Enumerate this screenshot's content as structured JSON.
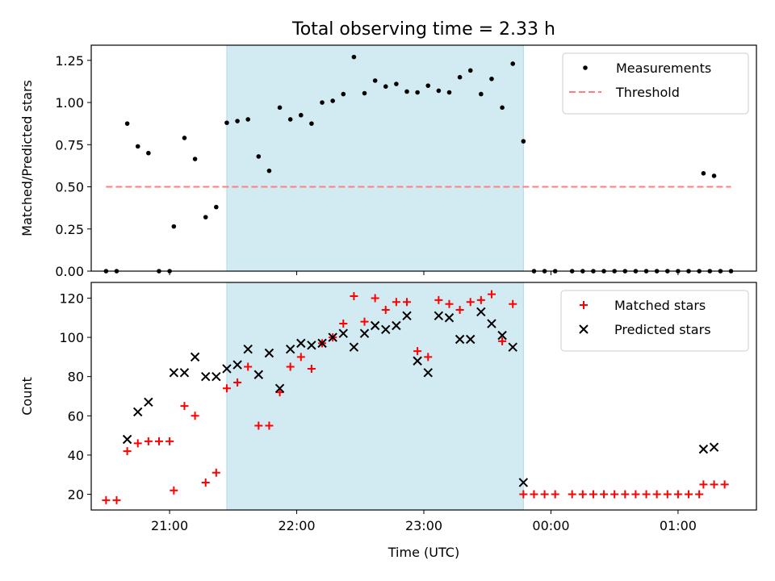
{
  "figure": {
    "title": "Total observing time = 2.33 h"
  },
  "colors": {
    "shade": "#add8e6",
    "threshold": "#ff7f7f",
    "matched": "#ff0000",
    "predicted": "#000000",
    "measurement": "#000000"
  },
  "chart_data": [
    {
      "type": "scatter",
      "title": "Total observing time = 2.33 h",
      "xlabel": "",
      "ylabel": "Matched/Predicted stars",
      "xlim": [
        "20:23",
        "01:37"
      ],
      "ylim": [
        0,
        1.34
      ],
      "xticks": [
        "21:00",
        "22:00",
        "23:00",
        "00:00",
        "01:00"
      ],
      "xtick_labels_visible": false,
      "yticks": [
        0.0,
        0.25,
        0.5,
        0.75,
        1.0,
        1.25
      ],
      "ytick_labels": [
        "0.00",
        "0.25",
        "0.50",
        "0.75",
        "1.00",
        "1.25"
      ],
      "shaded_span": [
        "21:27",
        "23:47"
      ],
      "legend_position": "upper right",
      "legend": [
        "Measurements",
        "Threshold"
      ],
      "threshold": {
        "name": "Threshold",
        "style": "dashed",
        "y": 0.5,
        "x": [
          "20:30",
          "01:25"
        ]
      },
      "series": [
        {
          "name": "Measurements",
          "marker": "dot",
          "points": [
            [
              "20:30",
              0.0
            ],
            [
              "20:35",
              0.0
            ],
            [
              "20:40",
              0.875
            ],
            [
              "20:45",
              0.74
            ],
            [
              "20:50",
              0.7
            ],
            [
              "20:55",
              0.0
            ],
            [
              "21:00",
              0.0
            ],
            [
              "21:02",
              0.265
            ],
            [
              "21:07",
              0.79
            ],
            [
              "21:12",
              0.665
            ],
            [
              "21:17",
              0.32
            ],
            [
              "21:22",
              0.38
            ],
            [
              "21:27",
              0.88
            ],
            [
              "21:32",
              0.89
            ],
            [
              "21:37",
              0.9
            ],
            [
              "21:42",
              0.68
            ],
            [
              "21:47",
              0.595
            ],
            [
              "21:52",
              0.97
            ],
            [
              "21:57",
              0.9
            ],
            [
              "22:02",
              0.925
            ],
            [
              "22:07",
              0.875
            ],
            [
              "22:12",
              1.0
            ],
            [
              "22:17",
              1.01
            ],
            [
              "22:22",
              1.05
            ],
            [
              "22:27",
              1.27
            ],
            [
              "22:32",
              1.055
            ],
            [
              "22:37",
              1.13
            ],
            [
              "22:42",
              1.095
            ],
            [
              "22:47",
              1.11
            ],
            [
              "22:52",
              1.065
            ],
            [
              "22:57",
              1.06
            ],
            [
              "23:02",
              1.1
            ],
            [
              "23:07",
              1.07
            ],
            [
              "23:12",
              1.06
            ],
            [
              "23:17",
              1.15
            ],
            [
              "23:22",
              1.19
            ],
            [
              "23:27",
              1.05
            ],
            [
              "23:32",
              1.14
            ],
            [
              "23:37",
              0.97
            ],
            [
              "23:42",
              1.23
            ],
            [
              "23:47",
              0.77
            ],
            [
              "23:52",
              0.0
            ],
            [
              "23:57",
              0.0
            ],
            [
              "00:02",
              0.0
            ],
            [
              "00:10",
              0.0
            ],
            [
              "00:15",
              0.0
            ],
            [
              "00:20",
              0.0
            ],
            [
              "00:25",
              0.0
            ],
            [
              "00:30",
              0.0
            ],
            [
              "00:35",
              0.0
            ],
            [
              "00:40",
              0.0
            ],
            [
              "00:45",
              0.0
            ],
            [
              "00:50",
              0.0
            ],
            [
              "00:55",
              0.0
            ],
            [
              "01:00",
              0.0
            ],
            [
              "01:05",
              0.0
            ],
            [
              "01:10",
              0.0
            ],
            [
              "01:15",
              0.0
            ],
            [
              "01:20",
              0.0
            ],
            [
              "01:25",
              0.0
            ],
            [
              "01:12",
              0.58
            ],
            [
              "01:17",
              0.565
            ]
          ]
        }
      ]
    },
    {
      "type": "scatter",
      "title": "",
      "xlabel": "Time (UTC)",
      "ylabel": "Count",
      "xlim": [
        "20:23",
        "01:37"
      ],
      "ylim": [
        12,
        128
      ],
      "xticks": [
        "21:00",
        "22:00",
        "23:00",
        "00:00",
        "01:00"
      ],
      "xtick_labels": [
        "21:00",
        "22:00",
        "23:00",
        "00:00",
        "01:00"
      ],
      "yticks": [
        20,
        40,
        60,
        80,
        100,
        120
      ],
      "ytick_labels": [
        "20",
        "40",
        "60",
        "80",
        "100",
        "120"
      ],
      "shaded_span": [
        "21:27",
        "23:47"
      ],
      "legend_position": "upper right",
      "legend": [
        "Matched stars",
        "Predicted stars"
      ],
      "series": [
        {
          "name": "Matched stars",
          "marker": "plus",
          "points": [
            [
              "20:30",
              17
            ],
            [
              "20:35",
              17
            ],
            [
              "20:40",
              42
            ],
            [
              "20:45",
              46
            ],
            [
              "20:50",
              47
            ],
            [
              "20:55",
              47
            ],
            [
              "21:00",
              47
            ],
            [
              "21:02",
              22
            ],
            [
              "21:07",
              65
            ],
            [
              "21:12",
              60
            ],
            [
              "21:17",
              26
            ],
            [
              "21:22",
              31
            ],
            [
              "21:27",
              74
            ],
            [
              "21:32",
              77
            ],
            [
              "21:37",
              85
            ],
            [
              "21:42",
              55
            ],
            [
              "21:47",
              55
            ],
            [
              "21:52",
              72
            ],
            [
              "21:57",
              85
            ],
            [
              "22:02",
              90
            ],
            [
              "22:07",
              84
            ],
            [
              "22:12",
              97
            ],
            [
              "22:17",
              100
            ],
            [
              "22:22",
              107
            ],
            [
              "22:27",
              121
            ],
            [
              "22:32",
              108
            ],
            [
              "22:37",
              120
            ],
            [
              "22:42",
              114
            ],
            [
              "22:47",
              118
            ],
            [
              "22:52",
              118
            ],
            [
              "22:57",
              93
            ],
            [
              "23:02",
              90
            ],
            [
              "23:07",
              119
            ],
            [
              "23:12",
              117
            ],
            [
              "23:17",
              114
            ],
            [
              "23:22",
              118
            ],
            [
              "23:27",
              119
            ],
            [
              "23:32",
              122
            ],
            [
              "23:37",
              98
            ],
            [
              "23:42",
              117
            ],
            [
              "23:47",
              20
            ],
            [
              "23:52",
              20
            ],
            [
              "23:57",
              20
            ],
            [
              "00:02",
              20
            ],
            [
              "00:10",
              20
            ],
            [
              "00:15",
              20
            ],
            [
              "00:20",
              20
            ],
            [
              "00:25",
              20
            ],
            [
              "00:30",
              20
            ],
            [
              "00:35",
              20
            ],
            [
              "00:40",
              20
            ],
            [
              "00:45",
              20
            ],
            [
              "00:50",
              20
            ],
            [
              "00:55",
              20
            ],
            [
              "01:00",
              20
            ],
            [
              "01:05",
              20
            ],
            [
              "01:10",
              20
            ],
            [
              "01:12",
              25
            ],
            [
              "01:17",
              25
            ],
            [
              "01:22",
              25
            ]
          ]
        },
        {
          "name": "Predicted stars",
          "marker": "x",
          "points": [
            [
              "20:40",
              48
            ],
            [
              "20:45",
              62
            ],
            [
              "20:50",
              67
            ],
            [
              "21:02",
              82
            ],
            [
              "21:07",
              82
            ],
            [
              "21:12",
              90
            ],
            [
              "21:17",
              80
            ],
            [
              "21:22",
              80
            ],
            [
              "21:27",
              84
            ],
            [
              "21:32",
              86
            ],
            [
              "21:37",
              94
            ],
            [
              "21:42",
              81
            ],
            [
              "21:47",
              92
            ],
            [
              "21:52",
              74
            ],
            [
              "21:57",
              94
            ],
            [
              "22:02",
              97
            ],
            [
              "22:07",
              96
            ],
            [
              "22:12",
              97
            ],
            [
              "22:17",
              100
            ],
            [
              "22:22",
              102
            ],
            [
              "22:27",
              95
            ],
            [
              "22:32",
              102
            ],
            [
              "22:37",
              106
            ],
            [
              "22:42",
              104
            ],
            [
              "22:47",
              106
            ],
            [
              "22:52",
              111
            ],
            [
              "22:57",
              88
            ],
            [
              "23:02",
              82
            ],
            [
              "23:07",
              111
            ],
            [
              "23:12",
              110
            ],
            [
              "23:17",
              99
            ],
            [
              "23:22",
              99
            ],
            [
              "23:27",
              113
            ],
            [
              "23:32",
              107
            ],
            [
              "23:37",
              101
            ],
            [
              "23:42",
              95
            ],
            [
              "23:47",
              26
            ],
            [
              "01:12",
              43
            ],
            [
              "01:17",
              44
            ]
          ]
        }
      ]
    }
  ]
}
